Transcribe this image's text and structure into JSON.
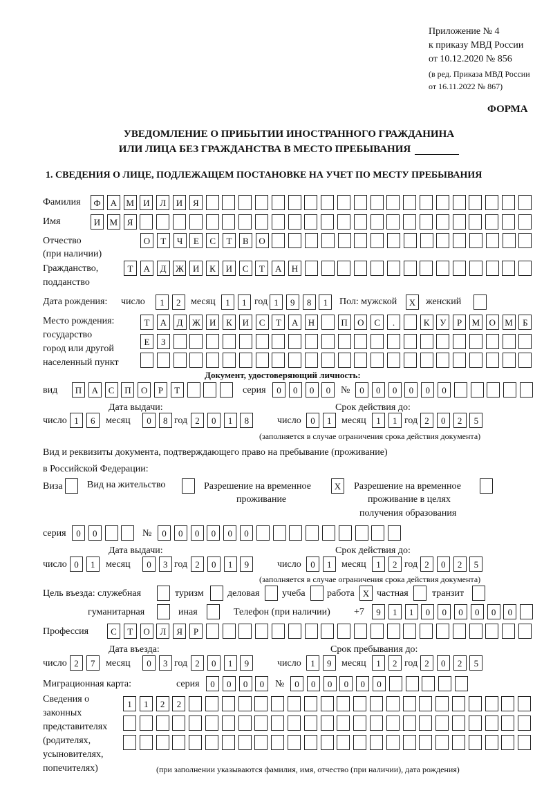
{
  "header": {
    "appendix": "Приложение № 4",
    "order": "к приказу МВД России",
    "order_date": "от 10.12.2020 № 856",
    "edition_1": "(в ред. Приказа МВД России",
    "edition_2": "от 16.11.2022 № 867)",
    "form_label": "ФОРМА",
    "title_1": "УВЕДОМЛЕНИЕ О ПРИБЫТИИ ИНОСТРАННОГО ГРАЖДАНИНА",
    "title_2": "ИЛИ ЛИЦА БЕЗ ГРАЖДАНСТВА В МЕСТО ПРЕБЫВАНИЯ",
    "section_1": "1. СВЕДЕНИЯ О ЛИЦЕ, ПОДЛЕЖАЩЕМ ПОСТАНОВКЕ НА УЧЕТ ПО МЕСТУ ПРЕБЫВАНИЯ"
  },
  "labels": {
    "surname": "Фамилия",
    "name": "Имя",
    "patronymic_1": "Отчество",
    "patronymic_2": "(при наличии)",
    "citizenship_1": "Гражданство,",
    "citizenship_2": "подданство",
    "birth_date": "Дата рождения:",
    "day": "число",
    "month": "месяц",
    "year": "год",
    "sex": "Пол: мужской",
    "female": "женский",
    "birth_place_1": "Место рождения:",
    "birth_place_2": "государство",
    "birth_place_3": "город или другой",
    "birth_place_4": "населенный пункт",
    "id_doc": "Документ, удостоверяющий личность:",
    "kind": "вид",
    "series": "серия",
    "number": "№",
    "issue_date": "Дата выдачи:",
    "valid_until": "Срок действия до:",
    "validity_note": "(заполняется в случае ограничения срока действия документа)",
    "stay_doc_1": "Вид и реквизиты документа, подтверждающего право на пребывание (проживание)",
    "stay_doc_2": "в Российской Федерации:",
    "visa": "Виза",
    "residence": "Вид на жительство",
    "temp_permit_1": "Разрешение на временное",
    "temp_permit_2": "проживание",
    "edu_permit_1": "Разрешение на временное",
    "edu_permit_2": "проживание в целях",
    "edu_permit_3": "получения образования",
    "purpose": "Цель въезда: служебная",
    "tourism": "туризм",
    "business": "деловая",
    "study": "учеба",
    "work": "работа",
    "private": "частная",
    "transit": "транзит",
    "humanitarian": "гуманитарная",
    "other": "иная",
    "phone": "Телефон (при наличии)",
    "phone_prefix": "+7",
    "profession": "Профессия",
    "entry_date": "Дата въезда:",
    "stay_until": "Срок пребывания до:",
    "migration_card": "Миграционная карта:",
    "reps_1": "Сведения о",
    "reps_2": "законных",
    "reps_3": "представителях",
    "reps_4": "(родителях,",
    "reps_5": "усыновителях,",
    "reps_6": "попечителях)",
    "reps_note": "(при заполнении указываются фамилия, имя, отчество (при наличии), дата рождения)"
  },
  "fields": {
    "surname": [
      "Ф",
      "А",
      "М",
      "И",
      "Л",
      "И",
      "Я",
      "",
      "",
      "",
      "",
      "",
      "",
      "",
      "",
      "",
      "",
      "",
      "",
      "",
      "",
      "",
      "",
      "",
      "",
      "",
      ""
    ],
    "name": [
      "И",
      "М",
      "Я",
      "",
      "",
      "",
      "",
      "",
      "",
      "",
      "",
      "",
      "",
      "",
      "",
      "",
      "",
      "",
      "",
      "",
      "",
      "",
      "",
      "",
      "",
      "",
      ""
    ],
    "patronymic": [
      "О",
      "Т",
      "Ч",
      "Е",
      "С",
      "Т",
      "В",
      "О",
      "",
      "",
      "",
      "",
      "",
      "",
      "",
      "",
      "",
      "",
      "",
      "",
      "",
      "",
      "",
      ""
    ],
    "citizenship": [
      "Т",
      "А",
      "Д",
      "Ж",
      "И",
      "К",
      "И",
      "С",
      "Т",
      "А",
      "Н",
      "",
      "",
      "",
      "",
      "",
      "",
      "",
      "",
      "",
      "",
      "",
      "",
      "",
      ""
    ],
    "birth_day": [
      "1",
      "2"
    ],
    "birth_month": [
      "1",
      "1"
    ],
    "birth_year": [
      "1",
      "9",
      "8",
      "1"
    ],
    "sex_male": [
      "X"
    ],
    "sex_female": [
      ""
    ],
    "birth_place_1": [
      "Т",
      "А",
      "Д",
      "Ж",
      "И",
      "К",
      "И",
      "С",
      "Т",
      "А",
      "Н",
      "",
      "П",
      "О",
      "С",
      ".",
      "",
      "К",
      "У",
      "Р",
      "М",
      "О",
      "М",
      "Б"
    ],
    "birth_place_2": [
      "Е",
      "З",
      "",
      "",
      "",
      "",
      "",
      "",
      "",
      "",
      "",
      "",
      "",
      "",
      "",
      "",
      "",
      "",
      "",
      "",
      "",
      "",
      "",
      ""
    ],
    "birth_place_3": [
      "",
      "",
      "",
      "",
      "",
      "",
      "",
      "",
      "",
      "",
      "",
      "",
      "",
      "",
      "",
      "",
      "",
      "",
      "",
      "",
      "",
      "",
      "",
      ""
    ],
    "doc_kind": [
      "П",
      "А",
      "С",
      "П",
      "О",
      "Р",
      "Т",
      "",
      "",
      ""
    ],
    "doc_series": [
      "0",
      "0",
      "0",
      "0"
    ],
    "doc_number": [
      "0",
      "0",
      "0",
      "0",
      "0",
      "0",
      "",
      "",
      "",
      "",
      ""
    ],
    "doc_issue_day": [
      "1",
      "6"
    ],
    "doc_issue_month": [
      "0",
      "8"
    ],
    "doc_issue_year": [
      "2",
      "0",
      "1",
      "8"
    ],
    "doc_valid_day": [
      "0",
      "1"
    ],
    "doc_valid_month": [
      "1",
      "1"
    ],
    "doc_valid_year": [
      "2",
      "0",
      "2",
      "5"
    ],
    "visa": [
      ""
    ],
    "residence": [
      ""
    ],
    "temp_permit": [
      "X"
    ],
    "edu_permit": [
      ""
    ],
    "permit_series": [
      "0",
      "0",
      "",
      ""
    ],
    "permit_number": [
      "0",
      "0",
      "0",
      "0",
      "0",
      "0",
      "",
      "",
      "",
      "",
      "",
      "",
      "",
      "",
      ""
    ],
    "permit_issue_day": [
      "0",
      "1"
    ],
    "permit_issue_month": [
      "0",
      "3"
    ],
    "permit_issue_year": [
      "2",
      "0",
      "1",
      "9"
    ],
    "permit_valid_day": [
      "0",
      "1"
    ],
    "permit_valid_month": [
      "1",
      "2"
    ],
    "permit_valid_year": [
      "2",
      "0",
      "2",
      "5"
    ],
    "purpose_official": [
      ""
    ],
    "purpose_tourism": [
      ""
    ],
    "purpose_business": [
      ""
    ],
    "purpose_study": [
      ""
    ],
    "purpose_work": [
      "X"
    ],
    "purpose_private": [
      ""
    ],
    "purpose_transit": [
      ""
    ],
    "purpose_humanitarian": [
      ""
    ],
    "purpose_other": [
      ""
    ],
    "phone": [
      "9",
      "1",
      "1",
      "0",
      "0",
      "0",
      "0",
      "0",
      "0",
      ""
    ],
    "profession": [
      "С",
      "Т",
      "О",
      "Л",
      "Я",
      "Р",
      "",
      "",
      "",
      "",
      "",
      "",
      "",
      "",
      "",
      "",
      "",
      "",
      "",
      "",
      "",
      "",
      "",
      "",
      "",
      ""
    ],
    "entry_day": [
      "2",
      "7"
    ],
    "entry_month": [
      "0",
      "3"
    ],
    "entry_year": [
      "2",
      "0",
      "1",
      "9"
    ],
    "stay_day": [
      "1",
      "9"
    ],
    "stay_month": [
      "1",
      "2"
    ],
    "stay_year": [
      "2",
      "0",
      "2",
      "5"
    ],
    "mig_series": [
      "0",
      "0",
      "0",
      "0"
    ],
    "mig_number": [
      "0",
      "0",
      "0",
      "0",
      "0",
      "0",
      "",
      "",
      "",
      "",
      ""
    ],
    "reps_1": [
      "1",
      "1",
      "2",
      "2",
      "",
      "",
      "",
      "",
      "",
      "",
      "",
      "",
      "",
      "",
      "",
      "",
      "",
      "",
      "",
      "",
      "",
      "",
      "",
      "",
      ""
    ],
    "reps_2": [
      "",
      "",
      "",
      "",
      "",
      "",
      "",
      "",
      "",
      "",
      "",
      "",
      "",
      "",
      "",
      "",
      "",
      "",
      "",
      "",
      "",
      "",
      "",
      "",
      ""
    ],
    "reps_3": [
      "",
      "",
      "",
      "",
      "",
      "",
      "",
      "",
      "",
      "",
      "",
      "",
      "",
      "",
      "",
      "",
      "",
      "",
      "",
      "",
      "",
      "",
      "",
      "",
      ""
    ]
  }
}
